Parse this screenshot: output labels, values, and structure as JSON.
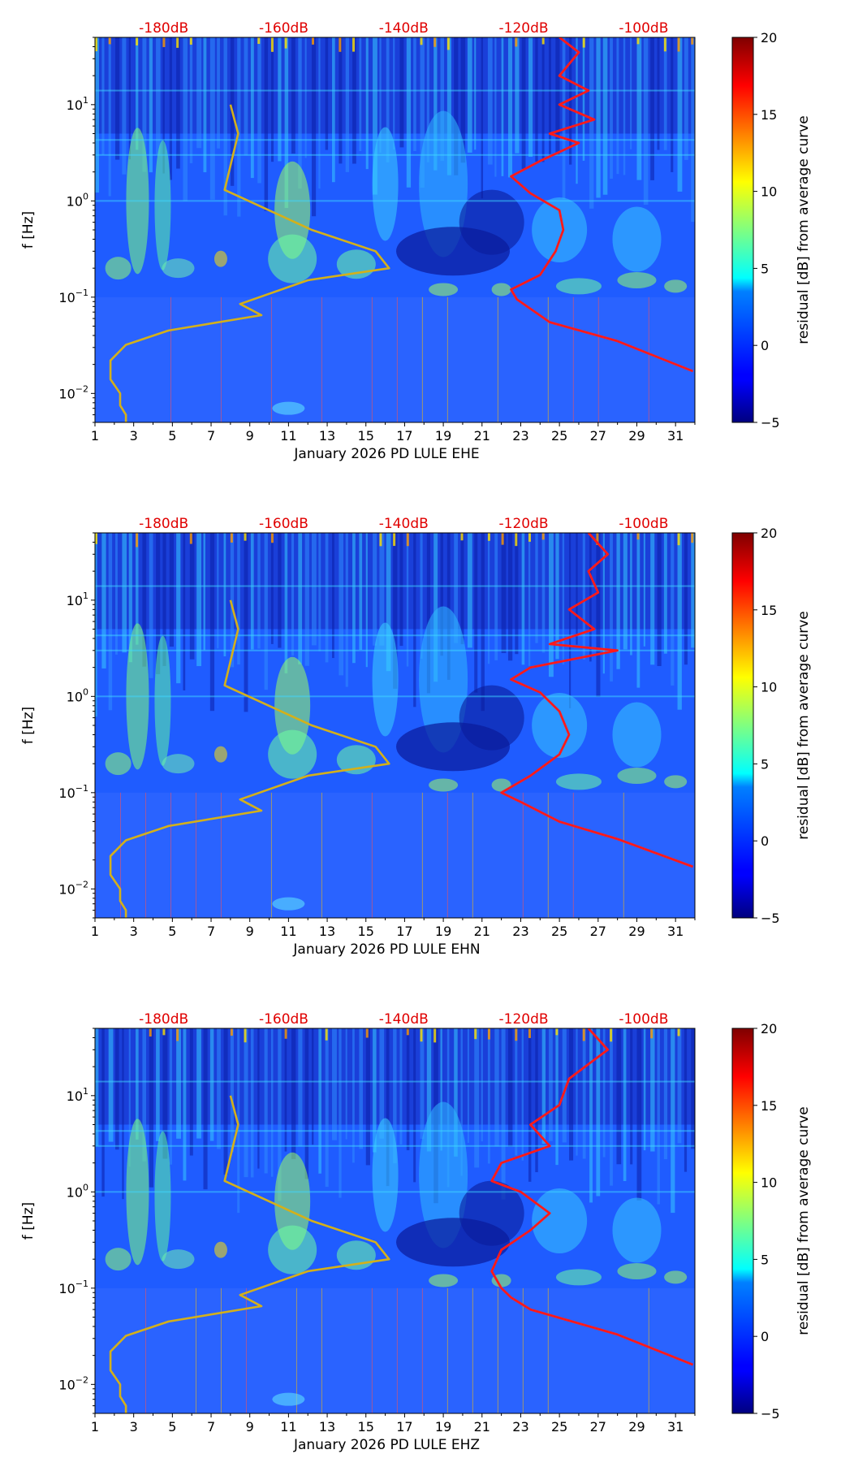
{
  "colors": {
    "reference_curve": "#ff1a1a",
    "noise_model": "#d4b01a",
    "db_label": "#e00000"
  },
  "colorbar": {
    "label": "residual [dB] from average curve",
    "ticks": [
      "20",
      "15",
      "10",
      "5",
      "0",
      "−5"
    ],
    "range": [
      -5,
      20
    ],
    "colormap": "jet"
  },
  "chart_data": [
    {
      "type": "heatmap",
      "title": "",
      "xlabel": "January 2026 PD LULE  EHE",
      "ylabel": "f [Hz]",
      "x_ticks": [
        "1",
        "3",
        "5",
        "7",
        "9",
        "11",
        "13",
        "15",
        "17",
        "19",
        "21",
        "23",
        "25",
        "27",
        "29",
        "31"
      ],
      "y_ticks": [
        {
          "base": "10",
          "exp": "1"
        },
        {
          "base": "10",
          "exp": "0"
        },
        {
          "base": "10",
          "exp": "−1"
        },
        {
          "base": "10",
          "exp": "−2"
        }
      ],
      "xlim": [
        1,
        32
      ],
      "ylim_hz": [
        0.005,
        50
      ],
      "top_db_labels": [
        "-180dB",
        "-160dB",
        "-140dB",
        "-120dB",
        "-100dB"
      ],
      "top_db_scale": {
        "day_at_-180dB": 4.3,
        "days_per_20dB": 6.2
      },
      "series": [
        {
          "name": "noise model (yellow)",
          "points_day_hz": [
            [
              8.0,
              10
            ],
            [
              8.4,
              5
            ],
            [
              7.7,
              1.3
            ],
            [
              12.2,
              0.5
            ],
            [
              15.5,
              0.3
            ],
            [
              16.2,
              0.2
            ],
            [
              12,
              0.15
            ],
            [
              8.5,
              0.085
            ],
            [
              9.6,
              0.065
            ],
            [
              4.8,
              0.045
            ],
            [
              2.6,
              0.032
            ],
            [
              1.8,
              0.022
            ],
            [
              1.8,
              0.014
            ],
            [
              2.3,
              0.01
            ],
            [
              2.3,
              0.0075
            ],
            [
              2.6,
              0.006
            ],
            [
              2.6,
              0.005
            ]
          ]
        },
        {
          "name": "reference PSD (red)",
          "points_day_hz": [
            [
              25.0,
              50
            ],
            [
              26.0,
              35
            ],
            [
              25.0,
              20
            ],
            [
              26.5,
              14
            ],
            [
              25.0,
              10
            ],
            [
              26.8,
              7
            ],
            [
              24.5,
              5
            ],
            [
              26.0,
              4
            ],
            [
              24.0,
              2.6
            ],
            [
              22.5,
              1.8
            ],
            [
              23.5,
              1.2
            ],
            [
              25.0,
              0.8
            ],
            [
              25.2,
              0.5
            ],
            [
              24.8,
              0.3
            ],
            [
              24.0,
              0.17
            ],
            [
              22.5,
              0.12
            ],
            [
              22.8,
              0.095
            ],
            [
              24.5,
              0.055
            ],
            [
              28,
              0.035
            ],
            [
              31.9,
              0.017
            ]
          ]
        }
      ]
    },
    {
      "type": "heatmap",
      "title": "",
      "xlabel": "January 2026 PD LULE  EHN",
      "ylabel": "f [Hz]",
      "x_ticks": [
        "1",
        "3",
        "5",
        "7",
        "9",
        "11",
        "13",
        "15",
        "17",
        "19",
        "21",
        "23",
        "25",
        "27",
        "29",
        "31"
      ],
      "y_ticks": [
        {
          "base": "10",
          "exp": "1"
        },
        {
          "base": "10",
          "exp": "0"
        },
        {
          "base": "10",
          "exp": "−1"
        },
        {
          "base": "10",
          "exp": "−2"
        }
      ],
      "xlim": [
        1,
        32
      ],
      "ylim_hz": [
        0.005,
        50
      ],
      "top_db_labels": [
        "-180dB",
        "-160dB",
        "-140dB",
        "-120dB",
        "-100dB"
      ],
      "top_db_scale": {
        "day_at_-180dB": 4.3,
        "days_per_20dB": 6.2
      },
      "series": [
        {
          "name": "noise model (yellow)",
          "points_day_hz": [
            [
              8.0,
              10
            ],
            [
              8.4,
              5
            ],
            [
              7.7,
              1.3
            ],
            [
              12.2,
              0.5
            ],
            [
              15.5,
              0.3
            ],
            [
              16.2,
              0.2
            ],
            [
              12,
              0.15
            ],
            [
              8.5,
              0.085
            ],
            [
              9.6,
              0.065
            ],
            [
              4.8,
              0.045
            ],
            [
              2.6,
              0.032
            ],
            [
              1.8,
              0.022
            ],
            [
              1.8,
              0.014
            ],
            [
              2.3,
              0.01
            ],
            [
              2.3,
              0.0075
            ],
            [
              2.6,
              0.006
            ],
            [
              2.6,
              0.005
            ]
          ]
        },
        {
          "name": "reference PSD (red)",
          "points_day_hz": [
            [
              26.5,
              50
            ],
            [
              27.5,
              30
            ],
            [
              26.5,
              20
            ],
            [
              27.0,
              12
            ],
            [
              25.5,
              8
            ],
            [
              26.8,
              5
            ],
            [
              24.5,
              3.5
            ],
            [
              28.0,
              3
            ],
            [
              23.5,
              2
            ],
            [
              22.5,
              1.5
            ],
            [
              24.0,
              1.1
            ],
            [
              25.0,
              0.7
            ],
            [
              25.5,
              0.4
            ],
            [
              25.0,
              0.25
            ],
            [
              23.5,
              0.15
            ],
            [
              22.0,
              0.1
            ],
            [
              23.0,
              0.08
            ],
            [
              25,
              0.05
            ],
            [
              28,
              0.033
            ],
            [
              31.9,
              0.017
            ]
          ]
        }
      ]
    },
    {
      "type": "heatmap",
      "title": "",
      "xlabel": "January 2026 PD LULE  EHZ",
      "ylabel": "f [Hz]",
      "x_ticks": [
        "1",
        "3",
        "5",
        "7",
        "9",
        "11",
        "13",
        "15",
        "17",
        "19",
        "21",
        "23",
        "25",
        "27",
        "29",
        "31"
      ],
      "y_ticks": [
        {
          "base": "10",
          "exp": "1"
        },
        {
          "base": "10",
          "exp": "0"
        },
        {
          "base": "10",
          "exp": "−1"
        },
        {
          "base": "10",
          "exp": "−2"
        }
      ],
      "xlim": [
        1,
        32
      ],
      "ylim_hz": [
        0.005,
        50
      ],
      "top_db_labels": [
        "-180dB",
        "-160dB",
        "-140dB",
        "-120dB",
        "-100dB"
      ],
      "top_db_scale": {
        "day_at_-180dB": 4.3,
        "days_per_20dB": 6.2
      },
      "series": [
        {
          "name": "noise model (yellow)",
          "points_day_hz": [
            [
              8.0,
              10
            ],
            [
              8.4,
              5
            ],
            [
              7.7,
              1.3
            ],
            [
              12.2,
              0.5
            ],
            [
              15.5,
              0.3
            ],
            [
              16.2,
              0.2
            ],
            [
              12,
              0.15
            ],
            [
              8.5,
              0.085
            ],
            [
              9.6,
              0.065
            ],
            [
              4.8,
              0.045
            ],
            [
              2.6,
              0.032
            ],
            [
              1.8,
              0.022
            ],
            [
              1.8,
              0.014
            ],
            [
              2.3,
              0.01
            ],
            [
              2.3,
              0.0075
            ],
            [
              2.6,
              0.006
            ],
            [
              2.6,
              0.005
            ]
          ]
        },
        {
          "name": "reference PSD (red)",
          "points_day_hz": [
            [
              26.5,
              50
            ],
            [
              27.5,
              30
            ],
            [
              25.5,
              15
            ],
            [
              25.0,
              8
            ],
            [
              23.5,
              5
            ],
            [
              24.5,
              3
            ],
            [
              22.0,
              2
            ],
            [
              21.5,
              1.3
            ],
            [
              23.0,
              1
            ],
            [
              24.5,
              0.6
            ],
            [
              23.5,
              0.4
            ],
            [
              22.0,
              0.25
            ],
            [
              21.5,
              0.15
            ],
            [
              22.0,
              0.1
            ],
            [
              22.5,
              0.08
            ],
            [
              23.5,
              0.06
            ],
            [
              28,
              0.033
            ],
            [
              31.9,
              0.016
            ]
          ]
        }
      ]
    }
  ]
}
